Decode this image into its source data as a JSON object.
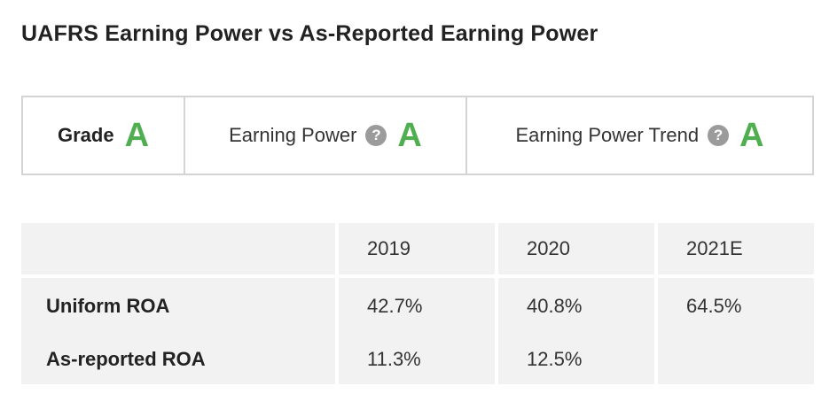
{
  "title": "UAFRS Earning Power vs As-Reported Earning Power",
  "grades": {
    "grade": {
      "label": "Grade",
      "value": "A"
    },
    "earning_power": {
      "label": "Earning Power",
      "help": "?",
      "value": "A"
    },
    "earning_power_trend": {
      "label": "Earning Power Trend",
      "help": "?",
      "value": "A"
    }
  },
  "table": {
    "columns": [
      "",
      "2019",
      "2020",
      "2021E"
    ],
    "rows": [
      {
        "label": "Uniform ROA",
        "values": [
          "42.7%",
          "40.8%",
          "64.5%"
        ]
      },
      {
        "label": "As-reported ROA",
        "values": [
          "11.3%",
          "12.5%",
          ""
        ]
      }
    ]
  },
  "colors": {
    "grade_green": "#4fae4f",
    "help_icon_gray": "#9b9b9b",
    "table_bg": "#f2f2f2",
    "border": "#d4d4d4"
  }
}
